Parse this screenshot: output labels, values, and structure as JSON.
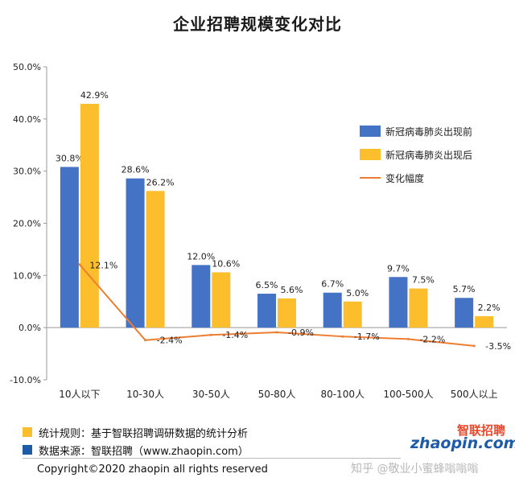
{
  "chart_data": {
    "type": "bar",
    "title": "企业招聘规模变化对比",
    "categories": [
      "10人以下",
      "10-30人",
      "30-50人",
      "50-80人",
      "80-100人",
      "100-500人",
      "500人以上"
    ],
    "series": [
      {
        "name": "新冠病毒肺炎出现前",
        "type": "bar",
        "color": "#4472c4",
        "values": [
          30.8,
          28.6,
          12.0,
          6.5,
          6.7,
          9.7,
          5.7
        ],
        "labels": [
          "30.8%",
          "28.6%",
          "12.0%",
          "6.5%",
          "6.7%",
          "9.7%",
          "5.7%"
        ]
      },
      {
        "name": "新冠病毒肺炎出现后",
        "type": "bar",
        "color": "#fcbe2d",
        "values": [
          42.9,
          26.2,
          10.6,
          5.6,
          5.0,
          7.5,
          2.2
        ],
        "labels": [
          "42.9%",
          "26.2%",
          "10.6%",
          "5.6%",
          "5.0%",
          "7.5%",
          "2.2%"
        ]
      },
      {
        "name": "变化幅度",
        "type": "line",
        "color": "#ed7d31",
        "values": [
          12.1,
          -2.4,
          -1.4,
          -0.9,
          -1.7,
          -2.2,
          -3.5
        ],
        "labels": [
          "12.1%",
          "-2.4%",
          "-1.4%",
          "-0.9%",
          "-1.7%",
          "-2.2%",
          "-3.5%"
        ]
      }
    ],
    "yticks": [
      "50.0%",
      "40.0%",
      "30.0%",
      "20.0%",
      "10.0%",
      "0.0%",
      "-10.0%"
    ],
    "ylim": [
      -10,
      50
    ],
    "legend_position": "right",
    "grid": false
  },
  "footer": {
    "stat_rule": "统计规则：基于智联招聘调研数据的统计分析",
    "stat_rule_color": "#fcbe2d",
    "data_source": "数据来源：智联招聘（www.zhaopin.com）",
    "data_source_color": "#1f5ca8",
    "copyright": "Copyright©2020 zhaopin all rights reserved"
  },
  "logo": {
    "zh": "智联招聘",
    "en": "zhaopin.com"
  },
  "watermark": "知乎 @敬业小蜜蜂嗡嗡嗡"
}
